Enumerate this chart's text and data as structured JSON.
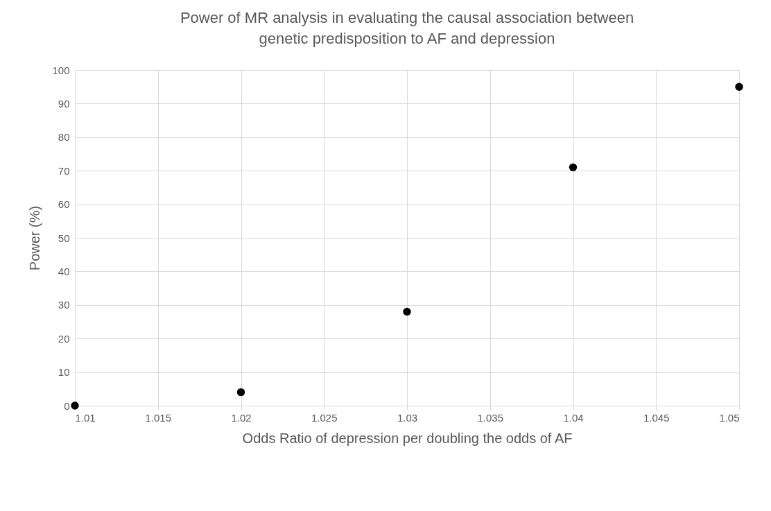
{
  "chart_data": {
    "type": "scatter",
    "title": "Power of MR analysis in evaluating the causal association between genetic predisposition to AF and depression",
    "xlabel": "Odds Ratio of depression per doubling the odds of AF",
    "ylabel": "Power (%)",
    "x": [
      1.01,
      1.02,
      1.03,
      1.04,
      1.05
    ],
    "series": [
      {
        "color": "#000000",
        "values": [
          0,
          4,
          28,
          71,
          95
        ]
      }
    ],
    "xlim": [
      1.01,
      1.05
    ],
    "xticks": [
      1.01,
      1.015,
      1.02,
      1.025,
      1.03,
      1.035,
      1.04,
      1.045,
      1.05
    ],
    "ylim": [
      0,
      100
    ],
    "yticks": [
      0,
      10,
      20,
      30,
      40,
      50,
      60,
      70,
      80,
      90,
      100
    ],
    "grid": true,
    "marker": "circle"
  }
}
